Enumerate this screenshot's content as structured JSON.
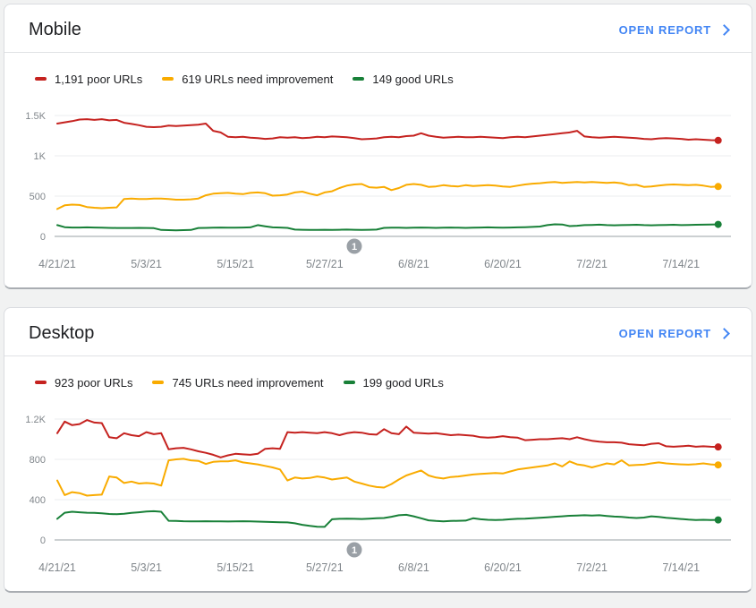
{
  "theme": {
    "link_blue": "#4285f4",
    "poor_red": "#c5221f",
    "needs_improvement_amber": "#f9ab00",
    "good_green": "#188038",
    "annotation_gray": "#9aa0a6",
    "axis_label_gray": "#80868b"
  },
  "chart_data": [
    {
      "type": "line",
      "title": "Mobile",
      "open_report_label": "OPEN REPORT",
      "legend": [
        {
          "text": "1,191 poor URLs"
        },
        {
          "text": "619 URLs need improvement"
        },
        {
          "text": "149 good URLs"
        }
      ],
      "y": {
        "max": 1500,
        "tick_labels": [
          "1.5K",
          "1K",
          "500",
          "0"
        ],
        "tick_values": [
          1500,
          1000,
          500,
          0
        ]
      },
      "x": {
        "tick_labels": [
          "4/21/21",
          "5/3/21",
          "5/15/21",
          "5/27/21",
          "6/8/21",
          "6/20/21",
          "7/2/21",
          "7/14/21"
        ],
        "tick_days": [
          0,
          12,
          24,
          36,
          48,
          60,
          72,
          84
        ],
        "days_per_point": 1
      },
      "annotation": {
        "label": "1",
        "day_offset": 40
      },
      "series": [
        {
          "name": "poor URLs",
          "color": "#c5221f",
          "values": [
            1400,
            1415,
            1430,
            1450,
            1455,
            1445,
            1455,
            1440,
            1445,
            1410,
            1395,
            1380,
            1360,
            1355,
            1360,
            1375,
            1370,
            1375,
            1380,
            1385,
            1400,
            1310,
            1290,
            1235,
            1230,
            1235,
            1225,
            1220,
            1210,
            1215,
            1230,
            1225,
            1230,
            1220,
            1225,
            1235,
            1230,
            1240,
            1235,
            1230,
            1220,
            1205,
            1210,
            1215,
            1230,
            1235,
            1230,
            1245,
            1250,
            1280,
            1250,
            1235,
            1225,
            1230,
            1235,
            1230,
            1230,
            1235,
            1230,
            1225,
            1220,
            1230,
            1235,
            1230,
            1240,
            1250,
            1260,
            1270,
            1280,
            1290,
            1310,
            1240,
            1230,
            1225,
            1230,
            1235,
            1230,
            1225,
            1220,
            1210,
            1205,
            1215,
            1220,
            1215,
            1210,
            1200,
            1205,
            1200,
            1195,
            1191
          ]
        },
        {
          "name": "URLs need improvement",
          "color": "#f9ab00",
          "values": [
            340,
            385,
            395,
            390,
            365,
            355,
            350,
            355,
            360,
            465,
            470,
            465,
            465,
            470,
            470,
            465,
            455,
            455,
            460,
            470,
            510,
            530,
            535,
            540,
            530,
            525,
            540,
            545,
            535,
            505,
            510,
            520,
            545,
            555,
            530,
            510,
            545,
            560,
            600,
            630,
            645,
            650,
            610,
            605,
            615,
            575,
            600,
            640,
            650,
            640,
            615,
            620,
            635,
            625,
            620,
            635,
            625,
            630,
            635,
            630,
            620,
            615,
            630,
            645,
            655,
            660,
            670,
            675,
            665,
            670,
            675,
            670,
            675,
            670,
            665,
            670,
            660,
            635,
            640,
            615,
            620,
            630,
            640,
            645,
            640,
            635,
            640,
            630,
            615,
            619
          ]
        },
        {
          "name": "good URLs",
          "color": "#188038",
          "values": [
            140,
            115,
            110,
            110,
            112,
            110,
            108,
            106,
            105,
            104,
            105,
            106,
            104,
            102,
            80,
            78,
            76,
            78,
            80,
            104,
            106,
            108,
            110,
            108,
            108,
            110,
            112,
            140,
            126,
            112,
            110,
            106,
            84,
            82,
            80,
            80,
            82,
            80,
            82,
            84,
            82,
            80,
            82,
            84,
            106,
            108,
            108,
            106,
            108,
            110,
            108,
            106,
            108,
            110,
            108,
            106,
            108,
            110,
            112,
            110,
            108,
            110,
            112,
            114,
            118,
            122,
            140,
            150,
            148,
            128,
            132,
            140,
            142,
            145,
            140,
            138,
            140,
            142,
            144,
            140,
            138,
            140,
            142,
            144,
            140,
            142,
            144,
            146,
            148,
            149
          ]
        }
      ]
    },
    {
      "type": "line",
      "title": "Desktop",
      "open_report_label": "OPEN REPORT",
      "legend": [
        {
          "text": "923 poor URLs"
        },
        {
          "text": "745 URLs need improvement"
        },
        {
          "text": "199 good URLs"
        }
      ],
      "y": {
        "max": 1200,
        "tick_labels": [
          "1.2K",
          "800",
          "400",
          "0"
        ],
        "tick_values": [
          1200,
          800,
          400,
          0
        ]
      },
      "x": {
        "tick_labels": [
          "4/21/21",
          "5/3/21",
          "5/15/21",
          "5/27/21",
          "6/8/21",
          "6/20/21",
          "7/2/21",
          "7/14/21"
        ],
        "tick_days": [
          0,
          12,
          24,
          36,
          48,
          60,
          72,
          84
        ],
        "days_per_point": 1
      },
      "annotation": {
        "label": "1",
        "day_offset": 40
      },
      "series": [
        {
          "name": "poor URLs",
          "color": "#c5221f",
          "values": [
            1060,
            1175,
            1140,
            1150,
            1190,
            1165,
            1160,
            1020,
            1010,
            1060,
            1040,
            1030,
            1070,
            1050,
            1060,
            900,
            910,
            915,
            900,
            880,
            865,
            845,
            820,
            840,
            855,
            850,
            845,
            855,
            905,
            910,
            905,
            1070,
            1065,
            1070,
            1065,
            1060,
            1070,
            1060,
            1040,
            1060,
            1070,
            1065,
            1050,
            1045,
            1100,
            1060,
            1050,
            1125,
            1065,
            1060,
            1055,
            1060,
            1050,
            1040,
            1045,
            1040,
            1035,
            1020,
            1015,
            1020,
            1030,
            1020,
            1015,
            990,
            995,
            1000,
            1000,
            1005,
            1010,
            1000,
            1020,
            1000,
            985,
            975,
            970,
            970,
            965,
            950,
            945,
            940,
            955,
            960,
            930,
            925,
            930,
            935,
            925,
            930,
            925,
            923
          ]
        },
        {
          "name": "URLs need improvement",
          "color": "#f9ab00",
          "values": [
            590,
            445,
            475,
            465,
            440,
            445,
            450,
            630,
            620,
            565,
            580,
            560,
            565,
            560,
            540,
            790,
            800,
            805,
            790,
            785,
            755,
            775,
            780,
            780,
            790,
            770,
            760,
            750,
            735,
            720,
            700,
            590,
            620,
            610,
            615,
            630,
            620,
            600,
            610,
            620,
            580,
            560,
            540,
            525,
            520,
            555,
            600,
            640,
            665,
            690,
            640,
            620,
            610,
            625,
            630,
            640,
            650,
            655,
            660,
            665,
            660,
            680,
            700,
            710,
            720,
            730,
            740,
            760,
            730,
            780,
            750,
            740,
            720,
            740,
            760,
            750,
            790,
            740,
            745,
            748,
            760,
            770,
            760,
            755,
            750,
            748,
            752,
            760,
            750,
            745
          ]
        },
        {
          "name": "good URLs",
          "color": "#188038",
          "values": [
            210,
            270,
            280,
            275,
            270,
            268,
            265,
            258,
            255,
            260,
            268,
            275,
            282,
            285,
            280,
            190,
            188,
            186,
            185,
            184,
            186,
            185,
            184,
            183,
            185,
            186,
            184,
            182,
            180,
            178,
            176,
            174,
            165,
            150,
            140,
            132,
            130,
            205,
            210,
            212,
            210,
            208,
            212,
            215,
            218,
            230,
            245,
            250,
            235,
            215,
            195,
            188,
            185,
            188,
            190,
            192,
            215,
            205,
            200,
            198,
            200,
            205,
            210,
            212,
            215,
            220,
            225,
            230,
            235,
            240,
            243,
            245,
            243,
            245,
            238,
            232,
            228,
            222,
            218,
            222,
            235,
            228,
            220,
            214,
            208,
            202,
            198,
            200,
            198,
            199
          ]
        }
      ]
    }
  ]
}
